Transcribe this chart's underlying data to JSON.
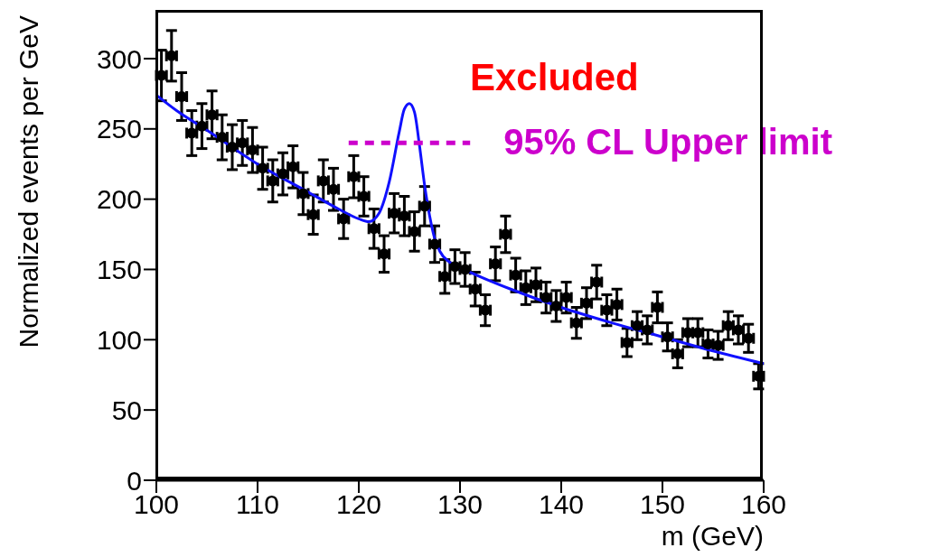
{
  "chart_data": {
    "type": "scatter",
    "xlabel": "m (GeV)",
    "ylabel": "Normalized events per GeV",
    "xlim": [
      100,
      160
    ],
    "ylim": [
      0,
      334
    ],
    "xticks": [
      100,
      110,
      120,
      130,
      140,
      150,
      160
    ],
    "yticks": [
      0,
      50,
      100,
      150,
      200,
      250,
      300
    ],
    "grid": false,
    "legend": false,
    "annotations": [
      "Excluded"
    ],
    "series": [
      {
        "marker": "circle",
        "color": "#000000",
        "x": [
          100.5,
          101.5,
          102.5,
          103.5,
          104.5,
          105.5,
          106.5,
          107.5,
          108.5,
          109.5,
          110.5,
          111.5,
          112.5,
          113.5,
          114.5,
          115.5,
          116.5,
          117.5,
          118.5,
          119.5,
          120.5,
          121.5,
          122.5,
          123.5,
          124.5,
          125.5,
          126.5,
          127.5,
          128.5,
          129.5,
          130.5,
          131.5,
          132.5,
          133.5,
          134.5,
          135.5,
          136.5,
          137.5,
          138.5,
          139.5,
          140.5,
          141.5,
          142.5,
          143.5,
          144.5,
          145.5,
          146.5,
          147.5,
          148.5,
          149.5,
          150.5,
          151.5,
          152.5,
          153.5,
          154.5,
          155.5,
          156.5,
          157.5,
          158.5,
          159.5
        ],
        "values": [
          288,
          302,
          273,
          247,
          252,
          260,
          244,
          237,
          240,
          235,
          222,
          213,
          218,
          223,
          204,
          189,
          213,
          207,
          186,
          216,
          202,
          179,
          161,
          190,
          188,
          177,
          195,
          168,
          145,
          152,
          150,
          136,
          121,
          154,
          175,
          146,
          137,
          139,
          130,
          124,
          130,
          112,
          126,
          141,
          121,
          125,
          98,
          110,
          107,
          123,
          102,
          90,
          105,
          105,
          97,
          96,
          110,
          107,
          101,
          74
        ],
        "errors": [
          18,
          18,
          17,
          16,
          16,
          17,
          16,
          16,
          16,
          16,
          15,
          15,
          15,
          15,
          15,
          14,
          15,
          15,
          14,
          15,
          14,
          14,
          13,
          14,
          14,
          14,
          14,
          13,
          12,
          12,
          12,
          12,
          11,
          12,
          13,
          12,
          12,
          12,
          11,
          11,
          11,
          11,
          11,
          12,
          11,
          11,
          10,
          10,
          10,
          11,
          10,
          10,
          10,
          10,
          10,
          10,
          10,
          10,
          10,
          9
        ],
        "xerrors": [
          0.5,
          0.5,
          0.5,
          0.5,
          0.5,
          0.5,
          0.5,
          0.5,
          0.5,
          0.5,
          0.5,
          0.5,
          0.5,
          0.5,
          0.5,
          0.5,
          0.5,
          0.5,
          0.5,
          0.5,
          0.5,
          0.5,
          0.5,
          0.5,
          0.5,
          0.5,
          0.5,
          0.5,
          0.5,
          0.5,
          0.5,
          0.5,
          0.5,
          0.5,
          0.5,
          0.5,
          0.5,
          0.5,
          0.5,
          0.5,
          0.5,
          0.5,
          0.5,
          0.5,
          0.5,
          0.5,
          0.5,
          0.5,
          0.5,
          0.5,
          0.5,
          0.5,
          0.5,
          0.5,
          0.5,
          0.5,
          0.5,
          0.5,
          0.5,
          0.5
        ]
      },
      {
        "type": "line",
        "color": "#1010ff",
        "line_style": "solid",
        "x": [
          100,
          102,
          105,
          110,
          115,
          118,
          120,
          121,
          122,
          123,
          124,
          124.5,
          125,
          125.5,
          126,
          126.5,
          127,
          127.5,
          128,
          129,
          131,
          135,
          140,
          145,
          150,
          155,
          160
        ],
        "values": [
          274,
          263,
          249,
          225,
          205,
          193,
          186,
          184,
          190,
          212,
          248,
          264,
          268,
          262,
          238,
          210,
          188,
          172,
          163,
          155,
          148,
          136,
          123,
          112,
          102,
          92,
          83
        ]
      },
      {
        "type": "line",
        "name": "95% CL Upper limit",
        "color": "#cc00cc",
        "line_style": "dashed",
        "x": [
          119,
          131
        ],
        "values": [
          240,
          240
        ]
      }
    ]
  }
}
